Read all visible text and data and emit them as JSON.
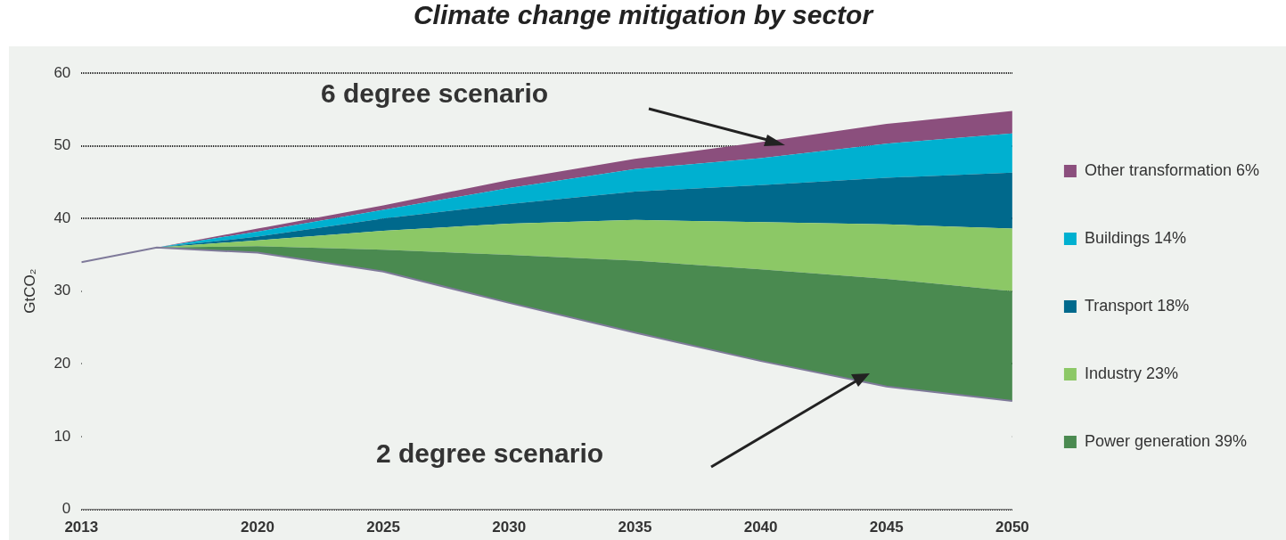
{
  "chart_data": {
    "type": "area",
    "title": "Climate change mitigation by sector",
    "ylabel": "GtCO₂",
    "x": [
      2013,
      2016,
      2020,
      2025,
      2030,
      2035,
      2040,
      2045,
      2050
    ],
    "xlim": [
      2013,
      2050
    ],
    "xticks": [
      2013,
      2020,
      2025,
      2030,
      2035,
      2040,
      2045,
      2050
    ],
    "ylim": [
      0,
      60
    ],
    "yticks": [
      0,
      10,
      20,
      30,
      40,
      50,
      60
    ],
    "grid": "y",
    "legend": "right",
    "stacked": true,
    "series": [
      {
        "color": "#eff2ef",
        "values": [
          34,
          36,
          35.3,
          32.7,
          28.4,
          24.3,
          20.4,
          16.9,
          14.9
        ]
      },
      {
        "name": "Power generation 39%",
        "color": "#4a8a50",
        "values": [
          0,
          0,
          0.9,
          3.0,
          6.6,
          9.9,
          12.6,
          14.8,
          15.1
        ]
      },
      {
        "name": "Industry 23%",
        "color": "#8cc866",
        "values": [
          0,
          0,
          0.8,
          2.6,
          4.3,
          5.6,
          6.5,
          7.5,
          8.6
        ]
      },
      {
        "name": "Transport 18%",
        "color": "#00698c",
        "values": [
          0,
          0,
          0.5,
          1.7,
          2.7,
          3.9,
          5.1,
          6.4,
          7.7
        ]
      },
      {
        "name": "Buildings 14%",
        "color": "#00b0d0",
        "values": [
          0,
          0,
          0.7,
          1.2,
          2.2,
          3.1,
          3.7,
          4.7,
          5.4
        ]
      },
      {
        "name": "Other transformation 6%",
        "color": "#8b4f7d",
        "values": [
          0,
          0,
          0.4,
          0.6,
          1.1,
          1.4,
          2.2,
          2.7,
          3.1
        ]
      }
    ],
    "annotations": [
      "6 degree scenario",
      "2 degree scenario"
    ]
  }
}
